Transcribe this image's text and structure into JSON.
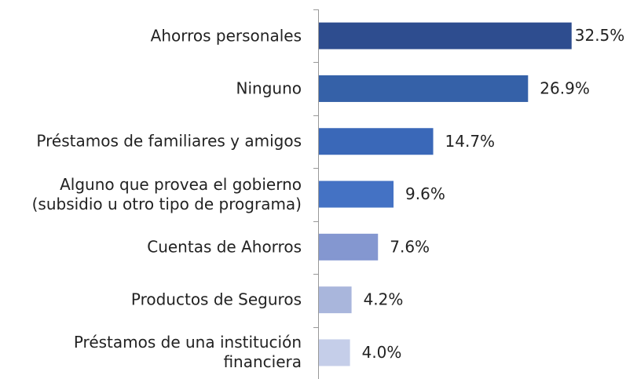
{
  "chart_data": {
    "type": "bar",
    "orientation": "horizontal",
    "categories": [
      "Ahorros personales",
      "Ninguno",
      "Préstamos de familiares y amigos",
      "Alguno que provea el gobierno\n(subsidio u otro tipo de programa)",
      "Cuentas de Ahorros",
      "Productos de Seguros",
      "Préstamos de una institución\nfinanciera"
    ],
    "values": [
      32.5,
      26.9,
      14.7,
      9.6,
      7.6,
      4.2,
      4.0
    ],
    "value_labels": [
      "32.5%",
      "26.9%",
      "14.7%",
      "9.6%",
      "7.6%",
      "4.2%",
      "4.0%"
    ],
    "colors": [
      "#2e4d8f",
      "#3561a8",
      "#3a68b8",
      "#4472c4",
      "#8497d0",
      "#a9b6dc",
      "#c5cee9"
    ]
  }
}
